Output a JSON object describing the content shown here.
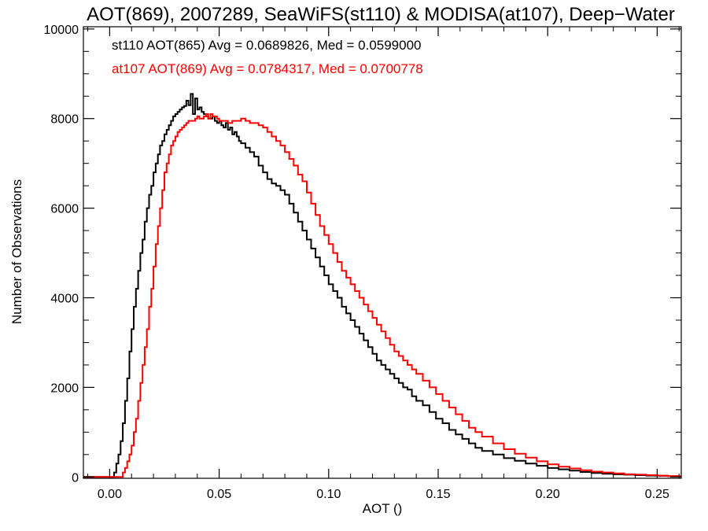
{
  "chart_data": {
    "type": "line",
    "title": "AOT(869), 2007289, SeaWiFS(st110) & MODISA(at107), Deep−Water",
    "xlabel": "AOT ()",
    "ylabel": "Number of Observations",
    "xlim": [
      -0.012,
      0.261
    ],
    "ylim": [
      -30,
      10050
    ],
    "xticks": [
      0.0,
      0.05,
      0.1,
      0.15,
      0.2,
      0.25
    ],
    "xtick_labels": [
      "0.00",
      "0.05",
      "0.10",
      "0.15",
      "0.20",
      "0.25"
    ],
    "yticks": [
      0,
      2000,
      4000,
      6000,
      8000,
      10000
    ],
    "ytick_labels": [
      "0",
      "2000",
      "4000",
      "6000",
      "8000",
      "10000"
    ],
    "grid": false,
    "style": "step",
    "series": [
      {
        "name": "st110 AOT(865)",
        "label": "st110 AOT(865) Avg = 0.0689826, Med = 0.0599000",
        "color": "#000000",
        "x": [
          -0.012,
          0.002,
          0.003,
          0.004,
          0.005,
          0.006,
          0.007,
          0.008,
          0.009,
          0.01,
          0.011,
          0.012,
          0.013,
          0.014,
          0.015,
          0.016,
          0.017,
          0.018,
          0.019,
          0.02,
          0.021,
          0.022,
          0.023,
          0.024,
          0.025,
          0.026,
          0.027,
          0.028,
          0.029,
          0.03,
          0.031,
          0.032,
          0.033,
          0.034,
          0.035,
          0.036,
          0.037,
          0.038,
          0.039,
          0.04,
          0.041,
          0.042,
          0.043,
          0.044,
          0.045,
          0.046,
          0.047,
          0.048,
          0.049,
          0.05,
          0.051,
          0.052,
          0.053,
          0.054,
          0.055,
          0.056,
          0.057,
          0.058,
          0.059,
          0.06,
          0.062,
          0.064,
          0.066,
          0.068,
          0.07,
          0.072,
          0.074,
          0.076,
          0.078,
          0.08,
          0.082,
          0.084,
          0.086,
          0.088,
          0.09,
          0.092,
          0.094,
          0.096,
          0.098,
          0.1,
          0.102,
          0.104,
          0.106,
          0.108,
          0.11,
          0.112,
          0.114,
          0.116,
          0.118,
          0.12,
          0.122,
          0.124,
          0.126,
          0.128,
          0.13,
          0.132,
          0.134,
          0.136,
          0.138,
          0.14,
          0.143,
          0.146,
          0.149,
          0.152,
          0.155,
          0.158,
          0.161,
          0.164,
          0.167,
          0.17,
          0.175,
          0.18,
          0.185,
          0.19,
          0.195,
          0.2,
          0.205,
          0.21,
          0.215,
          0.22,
          0.225,
          0.23,
          0.235,
          0.24,
          0.245,
          0.25,
          0.255,
          0.26
        ],
        "y": [
          0,
          100,
          300,
          500,
          800,
          1200,
          1700,
          2200,
          2800,
          3300,
          3800,
          4200,
          4600,
          5000,
          5300,
          5700,
          6000,
          6300,
          6500,
          6800,
          7000,
          7200,
          7400,
          7500,
          7650,
          7750,
          7850,
          7950,
          8050,
          8100,
          8150,
          8200,
          8250,
          8280,
          8400,
          8300,
          8550,
          8100,
          8450,
          8200,
          8250,
          8150,
          8100,
          8050,
          8000,
          8000,
          8050,
          7950,
          7900,
          7950,
          7850,
          7800,
          7900,
          7750,
          7800,
          7650,
          7700,
          7600,
          7500,
          7450,
          7350,
          7250,
          7150,
          6950,
          6800,
          6650,
          6550,
          6500,
          6400,
          6300,
          6100,
          5900,
          5700,
          5500,
          5300,
          5100,
          4900,
          4700,
          4500,
          4300,
          4150,
          4000,
          3800,
          3650,
          3500,
          3350,
          3200,
          3050,
          2900,
          2750,
          2600,
          2500,
          2400,
          2300,
          2200,
          2100,
          2000,
          1950,
          1800,
          1700,
          1600,
          1450,
          1300,
          1200,
          1050,
          950,
          850,
          750,
          650,
          580,
          500,
          420,
          360,
          300,
          250,
          200,
          170,
          140,
          110,
          90,
          70,
          60,
          50,
          40,
          30,
          25,
          20,
          15
        ]
      },
      {
        "name": "at107 AOT(869)",
        "label": "at107 AOT(869) Avg = 0.0784317, Med = 0.0700778",
        "color": "#ff0000",
        "x": [
          -0.012,
          0.006,
          0.007,
          0.008,
          0.009,
          0.01,
          0.011,
          0.012,
          0.013,
          0.014,
          0.015,
          0.016,
          0.017,
          0.018,
          0.019,
          0.02,
          0.021,
          0.022,
          0.023,
          0.024,
          0.025,
          0.026,
          0.027,
          0.028,
          0.029,
          0.03,
          0.031,
          0.032,
          0.033,
          0.034,
          0.035,
          0.036,
          0.037,
          0.038,
          0.039,
          0.04,
          0.041,
          0.042,
          0.043,
          0.044,
          0.045,
          0.046,
          0.047,
          0.048,
          0.049,
          0.05,
          0.052,
          0.054,
          0.056,
          0.058,
          0.06,
          0.062,
          0.064,
          0.066,
          0.068,
          0.07,
          0.072,
          0.074,
          0.076,
          0.078,
          0.08,
          0.082,
          0.084,
          0.086,
          0.088,
          0.09,
          0.092,
          0.094,
          0.096,
          0.098,
          0.1,
          0.102,
          0.104,
          0.106,
          0.108,
          0.11,
          0.112,
          0.114,
          0.116,
          0.118,
          0.12,
          0.122,
          0.124,
          0.126,
          0.128,
          0.13,
          0.132,
          0.134,
          0.136,
          0.138,
          0.14,
          0.143,
          0.146,
          0.149,
          0.152,
          0.155,
          0.158,
          0.161,
          0.164,
          0.167,
          0.17,
          0.175,
          0.18,
          0.185,
          0.19,
          0.195,
          0.2,
          0.205,
          0.21,
          0.215,
          0.22,
          0.225,
          0.23,
          0.235,
          0.24,
          0.245,
          0.25,
          0.255,
          0.26
        ],
        "y": [
          0,
          100,
          200,
          350,
          500,
          700,
          1000,
          1300,
          1700,
          2100,
          2500,
          2900,
          3300,
          3800,
          4200,
          4700,
          5200,
          5600,
          6000,
          6400,
          6800,
          7000,
          7200,
          7400,
          7500,
          7600,
          7700,
          7750,
          7800,
          7850,
          7900,
          7950,
          7950,
          7950,
          8000,
          8050,
          8000,
          8000,
          8050,
          8100,
          8000,
          8100,
          8050,
          8050,
          8000,
          7950,
          7950,
          7900,
          7950,
          7950,
          8000,
          7950,
          7900,
          7900,
          7850,
          7800,
          7700,
          7600,
          7500,
          7400,
          7250,
          7100,
          6950,
          6750,
          6600,
          6350,
          6100,
          5850,
          5600,
          5400,
          5200,
          5000,
          4800,
          4600,
          4450,
          4300,
          4150,
          4000,
          3850,
          3700,
          3550,
          3400,
          3250,
          3100,
          2950,
          2800,
          2700,
          2600,
          2500,
          2400,
          2300,
          2150,
          2000,
          1850,
          1700,
          1550,
          1400,
          1250,
          1100,
          1000,
          900,
          750,
          620,
          520,
          430,
          350,
          280,
          230,
          190,
          150,
          120,
          100,
          80,
          60,
          50,
          40,
          30,
          20,
          15
        ]
      }
    ]
  }
}
